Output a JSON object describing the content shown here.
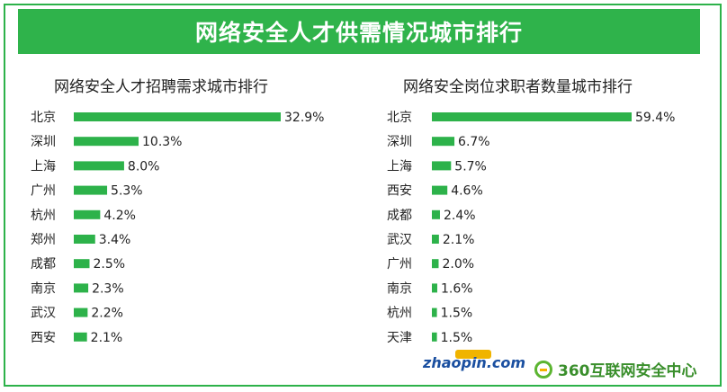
{
  "banner_title": "网络安全人才供需情况城市排行",
  "brand_colors": {
    "green": "#2fb34b",
    "bar": "#2db24a"
  },
  "chart_data": [
    {
      "type": "bar",
      "orientation": "horizontal",
      "title": "网络安全人才招聘需求城市排行",
      "categories": [
        "北京",
        "深圳",
        "上海",
        "广州",
        "杭州",
        "郑州",
        "成都",
        "南京",
        "武汉",
        "西安"
      ],
      "values": [
        32.9,
        10.3,
        8.0,
        5.3,
        4.2,
        3.4,
        2.5,
        2.3,
        2.2,
        2.1
      ],
      "value_labels": [
        "32.9%",
        "10.3%",
        "8.0%",
        "5.3%",
        "4.2%",
        "3.4%",
        "2.5%",
        "2.3%",
        "2.2%",
        "2.1%"
      ],
      "unit": "%",
      "grid": false,
      "legend": "none"
    },
    {
      "type": "bar",
      "orientation": "horizontal",
      "title": "网络安全岗位求职者数量城市排行",
      "categories": [
        "北京",
        "深圳",
        "上海",
        "西安",
        "成都",
        "武汉",
        "广州",
        "南京",
        "杭州",
        "天津"
      ],
      "values": [
        59.4,
        6.7,
        5.7,
        4.6,
        2.4,
        2.1,
        2.0,
        1.6,
        1.5,
        1.5
      ],
      "value_labels": [
        "59.4%",
        "6.7%",
        "5.7%",
        "4.6%",
        "2.4%",
        "2.1%",
        "2.0%",
        "1.6%",
        "1.5%",
        "1.5%"
      ],
      "unit": "%",
      "grid": false,
      "legend": "none"
    }
  ],
  "logos": {
    "zhaopin_text": "zhaopin.com",
    "logo360_text": "360互联网安全中心"
  }
}
